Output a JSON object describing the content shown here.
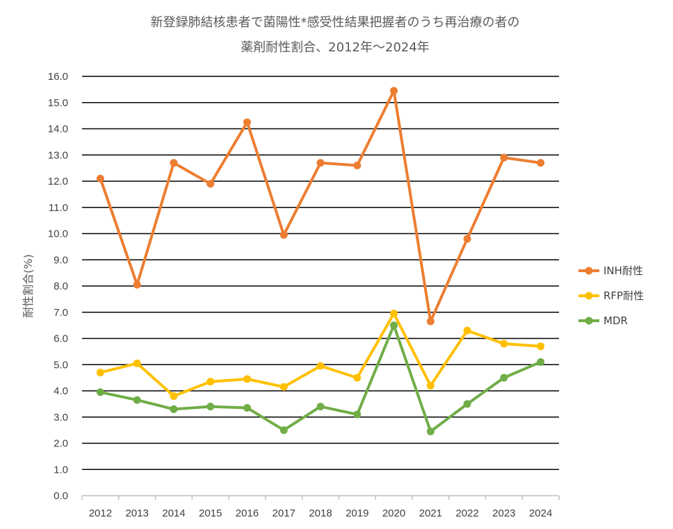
{
  "chart_data": {
    "type": "line",
    "title": [
      "新登録肺結核患者で菌陽性*感受性結果把握者のうち再治療の者の",
      "薬剤耐性割合、2012年～2024年"
    ],
    "ylabel": "耐性割合(%)",
    "xlabel": "",
    "ylim": [
      0,
      16
    ],
    "ytick_step": 1,
    "grid": true,
    "legend_position": "right",
    "categories": [
      "2012",
      "2013",
      "2014",
      "2015",
      "2016",
      "2017",
      "2018",
      "2019",
      "2020",
      "2021",
      "2022",
      "2023",
      "2024"
    ],
    "series": [
      {
        "name": "INH耐性",
        "color": "#ED7D31",
        "values": [
          12.1,
          8.05,
          12.7,
          11.9,
          14.25,
          9.95,
          12.7,
          12.6,
          15.45,
          6.65,
          9.8,
          12.9,
          12.7
        ]
      },
      {
        "name": "RFP耐性",
        "color": "#FFC000",
        "values": [
          4.7,
          5.05,
          3.8,
          4.35,
          4.45,
          4.15,
          4.95,
          4.5,
          6.95,
          4.2,
          6.3,
          5.8,
          5.7
        ]
      },
      {
        "name": "MDR",
        "color": "#70AD47",
        "values": [
          3.95,
          3.65,
          3.3,
          3.4,
          3.35,
          2.5,
          3.4,
          3.1,
          6.5,
          2.45,
          3.5,
          4.5,
          5.1
        ]
      }
    ]
  }
}
